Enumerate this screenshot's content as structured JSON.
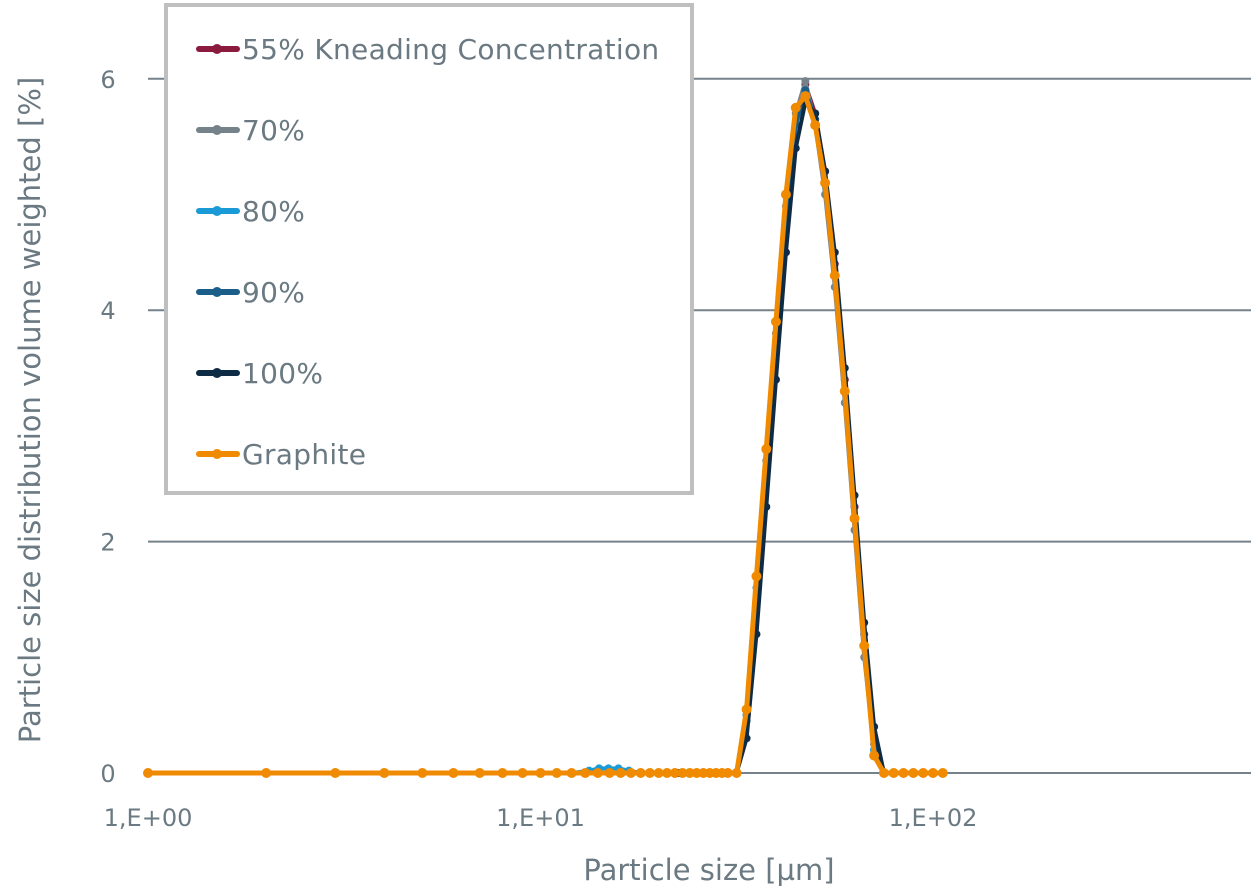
{
  "chart_data": {
    "type": "line",
    "title": "",
    "xlabel": "Particle size [µm]",
    "ylabel": "Particle size distribution volume weighted  [%]",
    "xscale": "log",
    "xlim": [
      1,
      1000
    ],
    "ylim": [
      0,
      6.5
    ],
    "x_ticks": [
      {
        "value": 1,
        "label": "1,E+00"
      },
      {
        "value": 10,
        "label": "1,E+01"
      },
      {
        "value": 100,
        "label": "1,E+02"
      }
    ],
    "y_ticks": [
      {
        "value": 0,
        "label": "0"
      },
      {
        "value": 2,
        "label": "2"
      },
      {
        "value": 4,
        "label": "4"
      },
      {
        "value": 6,
        "label": "6"
      }
    ],
    "grid": "horizontal",
    "legend_position": "upper-left",
    "series": [
      {
        "name": "55% Kneading Concentration",
        "color": "#8b1a3f",
        "x": [
          1,
          2,
          3,
          4,
          5,
          6,
          7,
          8,
          9,
          10,
          12,
          14,
          16,
          18,
          20,
          22.4,
          25,
          28,
          31.6,
          33.5,
          35.5,
          37.6,
          39.8,
          42.2,
          44.7,
          47.3,
          50.1,
          53.1,
          56.2,
          59.6,
          63.1,
          66.8,
          70.8,
          75,
          79.4,
          84.1,
          89.1,
          94.4,
          100,
          105.9
        ],
        "values": [
          0,
          0,
          0,
          0,
          0,
          0,
          0,
          0,
          0,
          0,
          0,
          0,
          0,
          0,
          0,
          0,
          0,
          0,
          0,
          0.5,
          1.5,
          2.6,
          3.7,
          4.8,
          5.6,
          5.95,
          5.7,
          5.2,
          4.4,
          3.4,
          2.3,
          1.2,
          0.3,
          0,
          0,
          0,
          0,
          0,
          0,
          0
        ]
      },
      {
        "name": "70%",
        "color": "#76828a",
        "x": [
          1,
          2,
          3,
          4,
          5,
          6,
          7,
          8,
          9,
          10,
          12,
          14,
          16,
          18,
          20,
          22.4,
          25,
          28,
          31.6,
          33.5,
          35.5,
          37.6,
          39.8,
          42.2,
          44.7,
          47.3,
          50.1,
          53.1,
          56.2,
          59.6,
          63.1,
          66.8,
          70.8,
          75,
          79.4,
          84.1,
          89.1,
          94.4,
          100,
          105.9
        ],
        "values": [
          0,
          0,
          0,
          0,
          0,
          0,
          0,
          0,
          0,
          0,
          0,
          0,
          0,
          0,
          0,
          0,
          0,
          0,
          0,
          0.5,
          1.6,
          2.7,
          3.8,
          4.9,
          5.7,
          5.98,
          5.6,
          5.0,
          4.2,
          3.2,
          2.1,
          1.0,
          0.2,
          0,
          0,
          0,
          0,
          0,
          0,
          0
        ]
      },
      {
        "name": "80%",
        "color": "#1a9ad6",
        "x": [
          1,
          2,
          3,
          4,
          5,
          6,
          7,
          8,
          9,
          10,
          12,
          13.3,
          14.1,
          14.9,
          15.8,
          16.8,
          18,
          20,
          22.4,
          25,
          28,
          31.6,
          33.5,
          35.5,
          37.6,
          39.8,
          42.2,
          44.7,
          47.3,
          50.1,
          53.1,
          56.2,
          59.6,
          63.1,
          66.8,
          70.8,
          75,
          79.4,
          84.1,
          89.1,
          94.4,
          100,
          105.9
        ],
        "values": [
          0,
          0,
          0,
          0,
          0,
          0,
          0,
          0,
          0,
          0,
          0,
          0.02,
          0.04,
          0.04,
          0.04,
          0.02,
          0,
          0,
          0,
          0,
          0,
          0,
          0.5,
          1.5,
          2.6,
          3.7,
          4.8,
          5.6,
          5.9,
          5.65,
          5.1,
          4.3,
          3.3,
          2.2,
          1.1,
          0.2,
          0,
          0,
          0,
          0,
          0,
          0,
          0
        ]
      },
      {
        "name": "90%",
        "color": "#1b5e8a",
        "x": [
          1,
          2,
          3,
          4,
          5,
          6,
          7,
          8,
          9,
          10,
          12,
          14,
          16,
          18,
          20,
          22.4,
          25,
          28,
          31.6,
          33.5,
          35.5,
          37.6,
          39.8,
          42.2,
          44.7,
          47.3,
          50.1,
          53.1,
          56.2,
          59.6,
          63.1,
          66.8,
          70.8,
          75,
          79.4,
          84.1,
          89.1,
          94.4,
          100,
          105.9
        ],
        "values": [
          0,
          0,
          0,
          0,
          0,
          0,
          0,
          0,
          0,
          0,
          0,
          0,
          0,
          0,
          0,
          0,
          0,
          0,
          0,
          0.45,
          1.5,
          2.6,
          3.7,
          4.8,
          5.6,
          5.9,
          5.65,
          5.1,
          4.3,
          3.3,
          2.2,
          1.1,
          0.25,
          0,
          0,
          0,
          0,
          0,
          0,
          0
        ]
      },
      {
        "name": "100%",
        "color": "#0d2b45",
        "x": [
          1,
          2,
          3,
          4,
          5,
          6,
          7,
          8,
          9,
          10,
          12,
          14,
          16,
          18,
          20,
          22.4,
          25,
          28,
          31.6,
          33.5,
          35.5,
          37.6,
          39.8,
          42.2,
          44.7,
          47.3,
          50.1,
          53.1,
          56.2,
          59.6,
          63.1,
          66.8,
          70.8,
          75,
          79.4,
          84.1,
          89.1,
          94.4,
          100,
          105.9
        ],
        "values": [
          0,
          0,
          0,
          0,
          0,
          0,
          0,
          0,
          0,
          0,
          0,
          0,
          0,
          0,
          0,
          0,
          0,
          0,
          0,
          0.3,
          1.2,
          2.3,
          3.4,
          4.5,
          5.4,
          5.8,
          5.7,
          5.2,
          4.5,
          3.5,
          2.4,
          1.3,
          0.4,
          0,
          0,
          0,
          0,
          0,
          0,
          0
        ]
      },
      {
        "name": "Graphite",
        "color": "#f08a00",
        "x": [
          1,
          2,
          3,
          4,
          5,
          6,
          7,
          8,
          9,
          10,
          11,
          12,
          13,
          14,
          15,
          16,
          17,
          18,
          19,
          20,
          21,
          22,
          23,
          24,
          25,
          26,
          27,
          28,
          29,
          30,
          31.6,
          33.5,
          35.5,
          37.6,
          39.8,
          42.2,
          44.7,
          47.3,
          50.1,
          53.1,
          56.2,
          59.6,
          63.1,
          66.8,
          70.8,
          75,
          79.4,
          84.1,
          89.1,
          94.4,
          100,
          105.9
        ],
        "values": [
          0,
          0,
          0,
          0,
          0,
          0,
          0,
          0,
          0,
          0,
          0,
          0,
          0,
          0,
          0,
          0,
          0,
          0,
          0,
          0,
          0,
          0,
          0,
          0,
          0,
          0,
          0,
          0,
          0,
          0,
          0,
          0.55,
          1.7,
          2.8,
          3.9,
          5.0,
          5.75,
          5.85,
          5.6,
          5.1,
          4.3,
          3.3,
          2.2,
          1.1,
          0.15,
          0,
          0,
          0,
          0,
          0,
          0,
          0
        ]
      }
    ]
  }
}
